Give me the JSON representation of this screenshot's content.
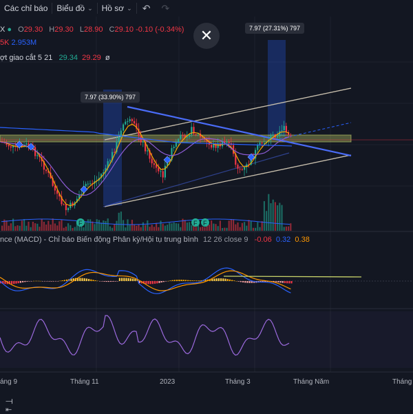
{
  "toolbar": {
    "indicators_label": "Các chỉ báo",
    "chart_label": "Biểu đồ",
    "profile_label": "Hồ sơ"
  },
  "legend": {
    "symbol_fragment": "X",
    "o_key": "O",
    "o_val": "29.30",
    "h_key": "H",
    "h_val": "29.30",
    "l_key": "L",
    "l_val": "28.90",
    "c_key": "C",
    "c_val": "29.10",
    "change": "-0.10 (-0.34%)",
    "vol_a": "5K",
    "vol_b": "2.953M",
    "ma_label": "ợt giao cắt 5 21",
    "ma_fast": "29.34",
    "ma_slow": "29.29",
    "ma_icon": "ø"
  },
  "annotations": {
    "box_left": "7.97 (33.90%) 797",
    "box_right": "7.97 (27.31%) 797"
  },
  "macd": {
    "title": "nce (MACD) - Chỉ báo Biến động Phân kỳ/Hội tụ trung bình",
    "params": "12 26 close 9",
    "hist": "-0.06",
    "macd": "0.32",
    "signal": "0.38"
  },
  "xaxis": {
    "l1": "áng 9",
    "l2": "Tháng 11",
    "l3": "2023",
    "l4": "Tháng 3",
    "l5": "Tháng Năm",
    "l6": "Tháng"
  },
  "colors": {
    "bg": "#131722",
    "up": "#22ab94",
    "down": "#f23645",
    "trend": "#4a6cf7",
    "channel": "#c9c0ae",
    "band": "#c8d36a",
    "macd_line": "#2962ff",
    "signal_line": "#ff9800",
    "rsi": "#9c6ade"
  }
}
